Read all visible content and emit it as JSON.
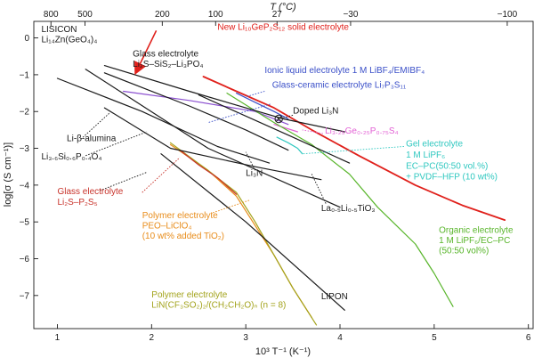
{
  "chart_data": {
    "type": "line",
    "xlabel": "10³ T⁻¹ (K⁻¹)",
    "ylabel": "log[σ (S cm⁻¹)]",
    "top_axis_label": "T (°C)",
    "xlim": [
      0.75,
      6.05
    ],
    "ylim": [
      -7.9,
      0.45
    ],
    "x_ticks": [
      1,
      2,
      3,
      4,
      5,
      6
    ],
    "y_ticks": [
      0,
      -1,
      -2,
      -3,
      -4,
      -5,
      -6,
      -7
    ],
    "top_ticks": [
      800,
      500,
      200,
      100,
      27,
      -30,
      -100
    ],
    "colors": {
      "black": "#1a1a1a",
      "red": "#e0201b",
      "blue": "#3a4fc8",
      "purple": "#8b4fd0",
      "magenta": "#e25fd4",
      "cyan": "#30c8c0",
      "green": "#58b52a",
      "orange": "#e88c1a",
      "olive": "#a3a31c",
      "darkred": "#c8322a"
    },
    "series": [
      {
        "color": "red",
        "x": [
          2.55,
          2.9,
          3.3,
          3.7,
          4.2,
          4.8,
          5.3,
          5.75
        ],
        "y": [
          -1.05,
          -1.45,
          -1.9,
          -2.5,
          -3.2,
          -4.0,
          -4.55,
          -4.95
        ]
      },
      {
        "color": "blue",
        "x": [
          2.9,
          3.1,
          3.3,
          3.45
        ],
        "y": [
          -1.5,
          -1.75,
          -2.0,
          -2.2
        ]
      },
      {
        "color": "purple",
        "x": [
          1.7,
          2.4,
          3.1,
          3.45
        ],
        "y": [
          -1.45,
          -1.7,
          -2.0,
          -2.35
        ]
      },
      {
        "color": "magenta",
        "x": [
          3.3,
          3.55
        ],
        "y": [
          -2.35,
          -2.55
        ]
      },
      {
        "color": "cyan",
        "x": [
          3.33,
          3.45,
          3.55,
          3.6
        ],
        "y": [
          -2.7,
          -2.85,
          -3.0,
          -3.15
        ]
      },
      {
        "color": "green",
        "x": [
          2.8,
          3.3,
          3.7,
          4.1,
          4.4,
          4.8,
          5.0,
          5.2
        ],
        "y": [
          -1.5,
          -2.3,
          -2.9,
          -3.7,
          -4.6,
          -5.6,
          -6.4,
          -7.3
        ]
      },
      {
        "color": "orange",
        "x": [
          2.2,
          2.6,
          2.9,
          3.1,
          3.3,
          3.5,
          3.7
        ],
        "y": [
          -2.9,
          -3.6,
          -4.3,
          -5.1,
          -5.9,
          -6.8,
          -7.6
        ]
      },
      {
        "color": "olive",
        "x": [
          2.2,
          2.6,
          2.9,
          3.1,
          3.3,
          3.5,
          3.75
        ],
        "y": [
          -2.85,
          -3.6,
          -4.2,
          -5.0,
          -5.9,
          -6.8,
          -7.8
        ]
      },
      {
        "color": "darkred",
        "x": [
          2.3,
          2.5,
          2.7,
          2.9
        ],
        "y": [
          -3.05,
          -3.45,
          -3.8,
          -4.25
        ]
      },
      {
        "color": "black",
        "x": [
          1.0,
          1.9,
          2.7,
          3.25
        ],
        "y": [
          -1.1,
          -2.0,
          -2.95,
          -3.4
        ]
      },
      {
        "color": "black",
        "x": [
          1.5,
          2.2,
          3.1,
          3.8
        ],
        "y": [
          -1.9,
          -3.0,
          -3.5,
          -3.85
        ]
      },
      {
        "color": "black",
        "x": [
          1.5,
          2.4,
          3.4,
          4.05
        ],
        "y": [
          -0.75,
          -1.45,
          -2.2,
          -2.55
        ]
      },
      {
        "color": "black",
        "x": [
          1.5,
          2.4,
          3.0,
          3.45
        ],
        "y": [
          -0.95,
          -1.85,
          -2.5,
          -3.05
        ]
      },
      {
        "color": "black",
        "x": [
          2.5,
          3.5,
          4.1
        ],
        "y": [
          -1.55,
          -2.7,
          -3.4
        ]
      },
      {
        "color": "black",
        "x": [
          1.3,
          2.6,
          4.0
        ],
        "y": [
          -0.85,
          -3.0,
          -4.6
        ]
      },
      {
        "color": "black",
        "x": [
          2.1,
          3.0,
          4.05
        ],
        "y": [
          -3.15,
          -5.0,
          -7.4
        ]
      }
    ],
    "labels": [
      {
        "text": "LISICON",
        "color": "black",
        "x": 0.83,
        "y": 0.16
      },
      {
        "text": "Li₁₄Zn(GeO₄)₄",
        "color": "black",
        "x": 0.83,
        "y": -0.12
      },
      {
        "text": "New Li₁₀GeP₂S₁₂ solid electrolyte",
        "color": "red",
        "x": 2.7,
        "y": 0.22
      },
      {
        "text": "Glass electrolyte",
        "color": "black",
        "x": 1.8,
        "y": -0.5
      },
      {
        "text": "Li₂S–SiS₂–Li₃PO₄",
        "color": "black",
        "x": 1.8,
        "y": -0.78
      },
      {
        "text": "Ionic liquid electrolyte 1 M LiBF₄/EMIBF₄",
        "color": "blue",
        "x": 3.2,
        "y": -0.95
      },
      {
        "text": "Glass-ceramic electrolyte Li₇P₃S₁₁",
        "color": "blue",
        "x": 3.28,
        "y": -1.35
      },
      {
        "text": "Doped Li₃N",
        "color": "black",
        "x": 3.5,
        "y": -2.05
      },
      {
        "text": "Li-β-alumina",
        "color": "black",
        "x": 1.1,
        "y": -2.8
      },
      {
        "text": "Li₃.₂₅Ge₀.₂₅P₀.₇₅S₄",
        "color": "magenta",
        "x": 3.84,
        "y": -2.6
      },
      {
        "text": "Gel electrolyte",
        "color": "cyan",
        "x": 4.7,
        "y": -2.95
      },
      {
        "text": "1 M LiPF₆",
        "color": "cyan",
        "x": 4.7,
        "y": -3.25
      },
      {
        "text": "EC–PC(50:50 vol.%)",
        "color": "cyan",
        "x": 4.7,
        "y": -3.55
      },
      {
        "text": "+ PVDF–HFP (10 wt%)",
        "color": "cyan",
        "x": 4.7,
        "y": -3.85
      },
      {
        "text": "Li₃.₆Si₀.₆P₀.₄O₄",
        "color": "black",
        "x": 0.83,
        "y": -3.3
      },
      {
        "text": "Li₃N",
        "color": "black",
        "x": 3.0,
        "y": -3.75
      },
      {
        "text": "Glass electrolyte",
        "color": "darkred",
        "x": 1.0,
        "y": -4.25
      },
      {
        "text": "Li₂S–P₂S₅",
        "color": "darkred",
        "x": 1.0,
        "y": -4.53
      },
      {
        "text": "Polymer electrolyte",
        "color": "orange",
        "x": 1.9,
        "y": -4.9
      },
      {
        "text": "PEO–LiClO₄",
        "color": "orange",
        "x": 1.9,
        "y": -5.18
      },
      {
        "text": "(10 wt% added TiO₂)",
        "color": "orange",
        "x": 1.9,
        "y": -5.46
      },
      {
        "text": "La₀.₅Li₀.₅TiO₃",
        "color": "black",
        "x": 3.8,
        "y": -4.7
      },
      {
        "text": "Organic electrolyte",
        "color": "green",
        "x": 5.05,
        "y": -5.3
      },
      {
        "text": "1 M LiPF₆/EC–PC",
        "color": "green",
        "x": 5.05,
        "y": -5.58
      },
      {
        "text": "(50:50 vol%)",
        "color": "green",
        "x": 5.05,
        "y": -5.86
      },
      {
        "text": "LIPON",
        "color": "black",
        "x": 3.8,
        "y": -7.1
      },
      {
        "text": "Polymer electrolyte",
        "color": "olive",
        "x": 2.0,
        "y": -7.05
      },
      {
        "text": "LiN(CF₃SO₂)₂/(CH₂CH₂O)ₙ (n = 8)",
        "color": "olive",
        "x": 2.0,
        "y": -7.33
      }
    ],
    "pointers": [
      {
        "color": "red",
        "x1": 2.05,
        "y1": 0.2,
        "x2": 1.85,
        "y2": -0.85
      },
      {
        "color": "blue",
        "x1": 3.2,
        "y1": -1.45,
        "x2": 3.0,
        "y2": -1.6
      },
      {
        "color": "blue",
        "x1": 3.26,
        "y1": -1.8,
        "x2": 2.6,
        "y2": -2.3
      },
      {
        "color": "black",
        "x1": 3.5,
        "y1": -2.1,
        "x2": 3.35,
        "y2": -2.2
      },
      {
        "color": "magenta",
        "x1": 3.82,
        "y1": -2.6,
        "x2": 3.6,
        "y2": -2.5
      },
      {
        "color": "cyan",
        "x1": 4.68,
        "y1": -2.95,
        "x2": 3.6,
        "y2": -3.15
      },
      {
        "color": "black",
        "x1": 1.55,
        "y1": -2.05,
        "x2": 1.25,
        "y2": -2.75
      },
      {
        "color": "black",
        "x1": 1.3,
        "y1": -3.2,
        "x2": 1.95,
        "y2": -2.55
      },
      {
        "color": "black",
        "x1": 1.45,
        "y1": -4.15,
        "x2": 1.95,
        "y2": -3.65
      },
      {
        "color": "darkred",
        "x1": 1.9,
        "y1": -4.2,
        "x2": 2.3,
        "y2": -3.25
      },
      {
        "color": "black",
        "x1": 3.85,
        "y1": -4.5,
        "x2": 3.7,
        "y2": -3.7
      },
      {
        "color": "black",
        "x1": 3.1,
        "y1": -3.6,
        "x2": 3.0,
        "y2": -3.1
      },
      {
        "color": "orange",
        "x1": 2.65,
        "y1": -4.75,
        "x2": 3.05,
        "y2": -4.4
      }
    ]
  }
}
